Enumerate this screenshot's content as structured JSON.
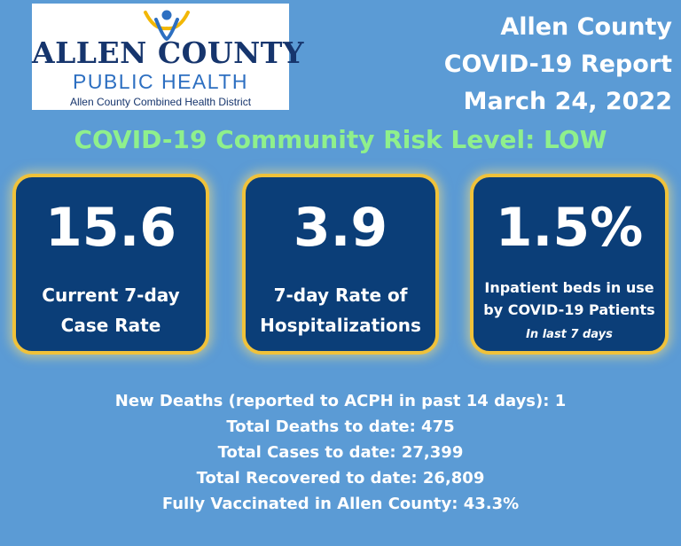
{
  "logo": {
    "name": "ALLEN COUNTY",
    "subtitle": "PUBLIC HEALTH",
    "district": "Allen County Combined Health District"
  },
  "report": {
    "county": "Allen County",
    "title": "COVID-19 Report",
    "date": "March 24, 2022"
  },
  "risk_level": "COVID-19 Community Risk Level: LOW",
  "cards": [
    {
      "value": "15.6",
      "label_line1": "Current 7-day",
      "label_line2": "Case Rate"
    },
    {
      "value": "3.9",
      "label_line1": "7-day Rate of",
      "label_line2": "Hospitalizations"
    },
    {
      "value": "1.5%",
      "label_line1": "Inpatient beds in use",
      "label_line2": "by COVID-19 Patients",
      "note": "In last  7 days"
    }
  ],
  "stats": [
    "New Deaths (reported to ACPH in past 14 days): 1",
    "Total Deaths to date: 475",
    "Total Cases to date: 27,399",
    "Total Recovered to date: 26,809",
    "Fully Vaccinated in Allen County: 43.3%"
  ],
  "colors": {
    "background": "#5b9bd5",
    "card_fill": "#0b3e78",
    "card_border": "#f0c23a",
    "risk_text": "#8ff08c",
    "logo_navy": "#16356d",
    "logo_blue": "#2d6fc1",
    "logo_yellow": "#f2b705"
  },
  "icons": {
    "logo_figure": "person-with-raised-arms-icon"
  }
}
